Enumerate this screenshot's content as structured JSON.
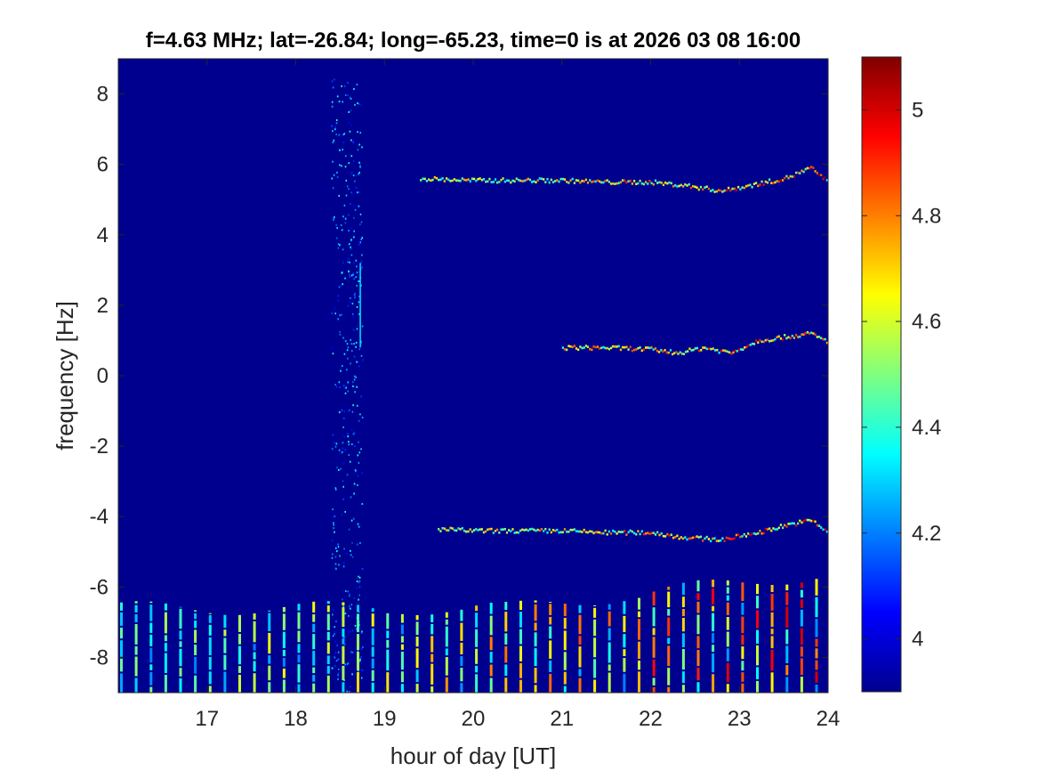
{
  "chart_data": {
    "type": "heatmap",
    "title": "f=4.63 MHz;  lat=-26.84; long=-65.23, time=0 is at 2026 03 08 16:00",
    "xlabel": "hour of day [UT]",
    "ylabel": "frequency [Hz]",
    "xlim": [
      16,
      24
    ],
    "ylim": [
      -9,
      9
    ],
    "x_ticks": [
      "17",
      "18",
      "19",
      "20",
      "21",
      "22",
      "23",
      "24"
    ],
    "x_tick_values": [
      17,
      18,
      19,
      20,
      21,
      22,
      23,
      24
    ],
    "y_ticks": [
      "8",
      "6",
      "4",
      "2",
      "0",
      "-2",
      "-4",
      "-6",
      "-8"
    ],
    "y_tick_values": [
      8,
      6,
      4,
      2,
      0,
      -2,
      -4,
      -6,
      -8
    ],
    "colorbar": {
      "range": [
        3.9,
        5.1
      ],
      "ticks": [
        "5",
        "4.8",
        "4.6",
        "4.4",
        "4.2",
        "4"
      ],
      "tick_values": [
        5,
        4.8,
        4.6,
        4.4,
        4.2,
        4.0
      ],
      "colormap": "jet"
    },
    "background_color": "#00008f",
    "traces": [
      {
        "x": [
          19.4,
          20.0,
          20.5,
          21.0,
          21.5,
          22.0,
          22.4,
          22.8,
          23.2,
          23.5,
          23.8,
          24.0
        ],
        "y": [
          5.6,
          5.55,
          5.55,
          5.55,
          5.5,
          5.5,
          5.4,
          5.25,
          5.45,
          5.6,
          5.9,
          5.5
        ]
      },
      {
        "x": [
          21.0,
          21.5,
          22.0,
          22.3,
          22.6,
          22.9,
          23.2,
          23.5,
          23.8,
          24.0
        ],
        "y": [
          0.8,
          0.8,
          0.75,
          0.65,
          0.8,
          0.65,
          1.0,
          1.1,
          1.2,
          0.95
        ]
      },
      {
        "x": [
          19.6,
          20.0,
          20.5,
          21.0,
          21.5,
          22.0,
          22.4,
          22.8,
          23.2,
          23.5,
          23.8,
          24.0
        ],
        "y": [
          -4.35,
          -4.4,
          -4.4,
          -4.4,
          -4.45,
          -4.45,
          -4.6,
          -4.65,
          -4.45,
          -4.25,
          -4.1,
          -4.45
        ]
      }
    ],
    "vertical_band": {
      "x_start": 18.4,
      "x_end": 18.75,
      "y_start": -9,
      "y_end": 8.5
    },
    "low_freq_stripes": {
      "y_bottom": -9,
      "x_start": 16.0,
      "x_end": 24.0,
      "spacing_hours": 0.1667
    }
  }
}
